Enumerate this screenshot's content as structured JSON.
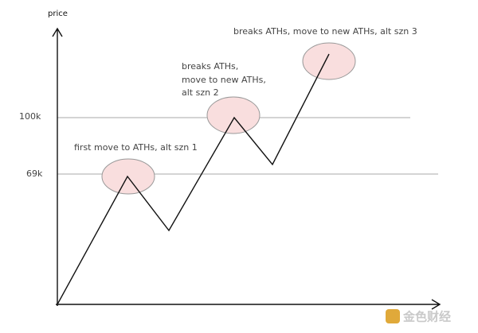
{
  "axis_label": "price",
  "levels": [
    {
      "label": "100k"
    },
    {
      "label": "69k"
    }
  ],
  "annotations": [
    "first move to ATHs, alt szn 1",
    "breaks ATHs,",
    "move to new ATHs,",
    "alt szn 2",
    "breaks ATHs, move to new ATHs, alt szn 3"
  ],
  "watermark": "金色财经"
}
